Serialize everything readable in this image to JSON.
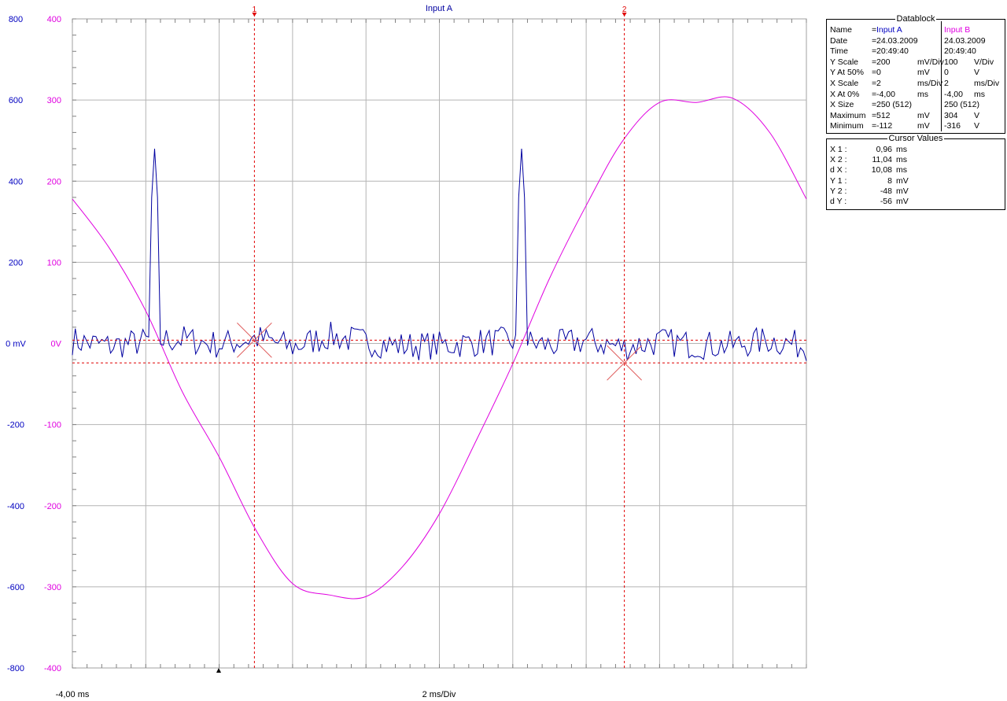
{
  "chart_data": {
    "type": "line",
    "title": "Input A",
    "x_start_label": "-4,00 ms",
    "x_scale_label": "2 ms/Div",
    "x_range": [
      -4,
      16
    ],
    "axis_a": {
      "unit": "mV",
      "range": [
        -800,
        800
      ],
      "color": "#0000c0",
      "ticks": [
        800,
        600,
        400,
        200,
        0,
        -200,
        -400,
        -600,
        -800
      ],
      "tick_labels": [
        "800",
        "600",
        "400",
        "200",
        "0 mV",
        "-200",
        "-400",
        "-600",
        "-800"
      ]
    },
    "axis_b": {
      "unit": "V",
      "range": [
        -400,
        400
      ],
      "color": "#e000e0",
      "ticks": [
        400,
        300,
        200,
        100,
        0,
        -100,
        -200,
        -300,
        -400
      ],
      "tick_labels": [
        "400",
        "300",
        "200",
        "100",
        "0V",
        "-100",
        "-200",
        "-300",
        "-400"
      ]
    },
    "grid": true,
    "cursors": [
      {
        "label": "1",
        "x": 0.96,
        "y": 8
      },
      {
        "label": "2",
        "x": 11.04,
        "y": -48
      }
    ],
    "series": [
      {
        "name": "Input A",
        "axis": "a",
        "color": "#0000a0",
        "noise_amplitude_mV": 40,
        "spikes": [
          {
            "x": -1.77,
            "y": 480
          },
          {
            "x": 8.23,
            "y": 480
          }
        ],
        "x": [
          -4,
          -3,
          -2,
          -1,
          0,
          1,
          2,
          3,
          4,
          5,
          6,
          7,
          8,
          9,
          10,
          11,
          12,
          13,
          14,
          15,
          16
        ],
        "y": [
          12,
          -10,
          8,
          18,
          -6,
          22,
          -14,
          30,
          6,
          -10,
          -8,
          4,
          10,
          -8,
          12,
          -16,
          8,
          -6,
          -8,
          14,
          -12
        ]
      },
      {
        "name": "Input B",
        "axis": "b",
        "color": "#e000e0",
        "x": [
          -4,
          -3,
          -2,
          -1,
          0,
          1,
          2,
          3,
          4,
          5,
          6,
          7,
          8,
          9,
          10,
          11,
          12,
          13,
          14,
          15,
          16
        ],
        "y": [
          178,
          118,
          40,
          -60,
          -140,
          -230,
          -296,
          -310,
          -312,
          -275,
          -210,
          -120,
          -25,
          80,
          170,
          250,
          297,
          297,
          302,
          260,
          178
        ]
      }
    ]
  },
  "datablock": {
    "title": "Datablock",
    "rows": [
      {
        "label": "Name",
        "eq": "=",
        "a_val": "Input A",
        "a_unit": "",
        "b_val": "Input B",
        "b_unit": ""
      },
      {
        "label": "Date",
        "eq": "=",
        "a_val": "24.03.2009",
        "a_unit": "",
        "b_val": "24.03.2009",
        "b_unit": ""
      },
      {
        "label": "Time",
        "eq": "=",
        "a_val": "20:49:40",
        "a_unit": "",
        "b_val": "20:49:40",
        "b_unit": ""
      },
      {
        "label": "Y Scale",
        "eq": "=",
        "a_val": "200",
        "a_unit": "mV/Div",
        "b_val": "100",
        "b_unit": "V/Div"
      },
      {
        "label": "Y At 50%",
        "eq": "=",
        "a_val": "0",
        "a_unit": "mV",
        "b_val": "0",
        "b_unit": "V"
      },
      {
        "label": "X Scale",
        "eq": "=",
        "a_val": "2",
        "a_unit": "ms/Div",
        "b_val": "2",
        "b_unit": "ms/Div"
      },
      {
        "label": "X At 0%",
        "eq": "=",
        "a_val": "-4,00",
        "a_unit": "ms",
        "b_val": "-4,00",
        "b_unit": "ms"
      },
      {
        "label": "X Size",
        "eq": "=",
        "a_val": "250 (512)",
        "a_unit": "",
        "b_val": "250 (512)",
        "b_unit": ""
      },
      {
        "label": "Maximum",
        "eq": "=",
        "a_val": "512",
        "a_unit": "mV",
        "b_val": "304",
        "b_unit": "V"
      },
      {
        "label": "Minimum",
        "eq": "=",
        "a_val": "-112",
        "a_unit": "mV",
        "b_val": "-316",
        "b_unit": "V"
      }
    ]
  },
  "cursor_values": {
    "title": "Cursor Values",
    "rows": [
      {
        "label": "X 1 :",
        "value": "0,96",
        "unit": "ms"
      },
      {
        "label": "X 2 :",
        "value": "11,04",
        "unit": "ms"
      },
      {
        "label": "d X :",
        "value": "10,08",
        "unit": "ms"
      },
      {
        "label": "Y 1 :",
        "value": "8",
        "unit": "mV"
      },
      {
        "label": "Y 2 :",
        "value": "-48",
        "unit": "mV"
      },
      {
        "label": "d Y :",
        "value": "-56",
        "unit": "mV"
      }
    ]
  }
}
